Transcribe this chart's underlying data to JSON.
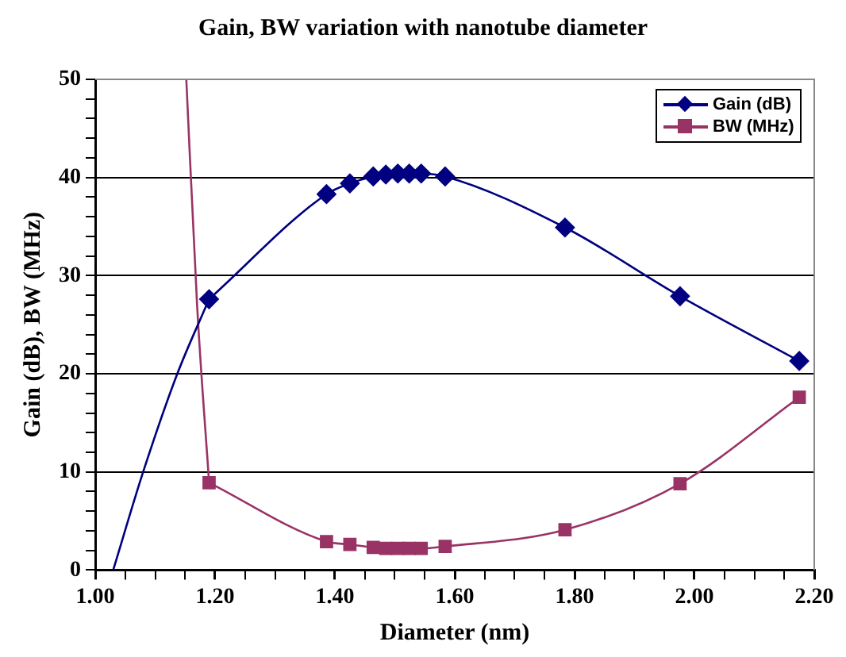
{
  "chart_data": {
    "type": "line",
    "title": "Gain, BW variation with nanotube diameter",
    "xlabel": "Diameter (nm)",
    "ylabel": "Gain (dB), BW (MHz)",
    "xlim": [
      1.0,
      2.2
    ],
    "ylim": [
      0,
      50
    ],
    "xticks": [
      {
        "value": 1.0,
        "label": "1.00"
      },
      {
        "value": 1.05,
        "label": null
      },
      {
        "value": 1.1,
        "label": null
      },
      {
        "value": 1.15,
        "label": null
      },
      {
        "value": 1.2,
        "label": "1.20"
      },
      {
        "value": 1.25,
        "label": null
      },
      {
        "value": 1.3,
        "label": null
      },
      {
        "value": 1.35,
        "label": null
      },
      {
        "value": 1.4,
        "label": "1.40"
      },
      {
        "value": 1.45,
        "label": null
      },
      {
        "value": 1.5,
        "label": null
      },
      {
        "value": 1.55,
        "label": null
      },
      {
        "value": 1.6,
        "label": "1.60"
      },
      {
        "value": 1.65,
        "label": null
      },
      {
        "value": 1.7,
        "label": null
      },
      {
        "value": 1.75,
        "label": null
      },
      {
        "value": 1.8,
        "label": "1.80"
      },
      {
        "value": 1.85,
        "label": null
      },
      {
        "value": 1.9,
        "label": null
      },
      {
        "value": 1.95,
        "label": null
      },
      {
        "value": 2.0,
        "label": "2.00"
      },
      {
        "value": 2.05,
        "label": null
      },
      {
        "value": 2.1,
        "label": null
      },
      {
        "value": 2.15,
        "label": null
      },
      {
        "value": 2.2,
        "label": "2.20"
      }
    ],
    "yticks": [
      0,
      {
        "value": 2,
        "label": null
      },
      {
        "value": 4,
        "label": null
      },
      {
        "value": 6,
        "label": null
      },
      {
        "value": 8,
        "label": null
      },
      10,
      {
        "value": 12,
        "label": null
      },
      {
        "value": 14,
        "label": null
      },
      {
        "value": 16,
        "label": null
      },
      {
        "value": 18,
        "label": null
      },
      20,
      {
        "value": 22,
        "label": null
      },
      {
        "value": 24,
        "label": null
      },
      {
        "value": 26,
        "label": null
      },
      {
        "value": 28,
        "label": null
      },
      30,
      {
        "value": 32,
        "label": null
      },
      {
        "value": 34,
        "label": null
      },
      {
        "value": 36,
        "label": null
      },
      {
        "value": 38,
        "label": null
      },
      40,
      {
        "value": 42,
        "label": null
      },
      {
        "value": 44,
        "label": null
      },
      {
        "value": 46,
        "label": null
      },
      {
        "value": 48,
        "label": null
      },
      50
    ],
    "grid": "y",
    "legend": "top right",
    "series": [
      {
        "name": "Gain (dB)",
        "color": "#000080",
        "marker": "diamond",
        "x": [
          1.19,
          1.386,
          1.425,
          1.464,
          1.485,
          1.505,
          1.524,
          1.544,
          1.584,
          1.784,
          1.976,
          2.175
        ],
        "values": [
          27.6,
          38.3,
          39.4,
          40.1,
          40.3,
          40.4,
          40.4,
          40.4,
          40.1,
          34.9,
          27.9,
          21.3
        ]
      },
      {
        "name": "BW (MHz)",
        "color": "#993366",
        "marker": "square",
        "x": [
          1.19,
          1.386,
          1.425,
          1.464,
          1.485,
          1.505,
          1.524,
          1.544,
          1.584,
          1.784,
          1.976,
          2.175
        ],
        "values": [
          8.9,
          2.9,
          2.6,
          2.3,
          2.2,
          2.2,
          2.2,
          2.2,
          2.4,
          4.1,
          8.8,
          17.6
        ]
      },
      {
        "type": "line",
        "color": "#000080",
        "marker": "none",
        "x": [
          1.03,
          1.08,
          1.137,
          1.19
        ],
        "values": [
          0,
          10,
          20,
          27.6
        ]
      },
      {
        "type": "line",
        "color": "#993366",
        "marker": "none",
        "x": [
          1.152,
          1.17,
          1.19
        ],
        "values": [
          50,
          27,
          8.9
        ]
      }
    ]
  }
}
